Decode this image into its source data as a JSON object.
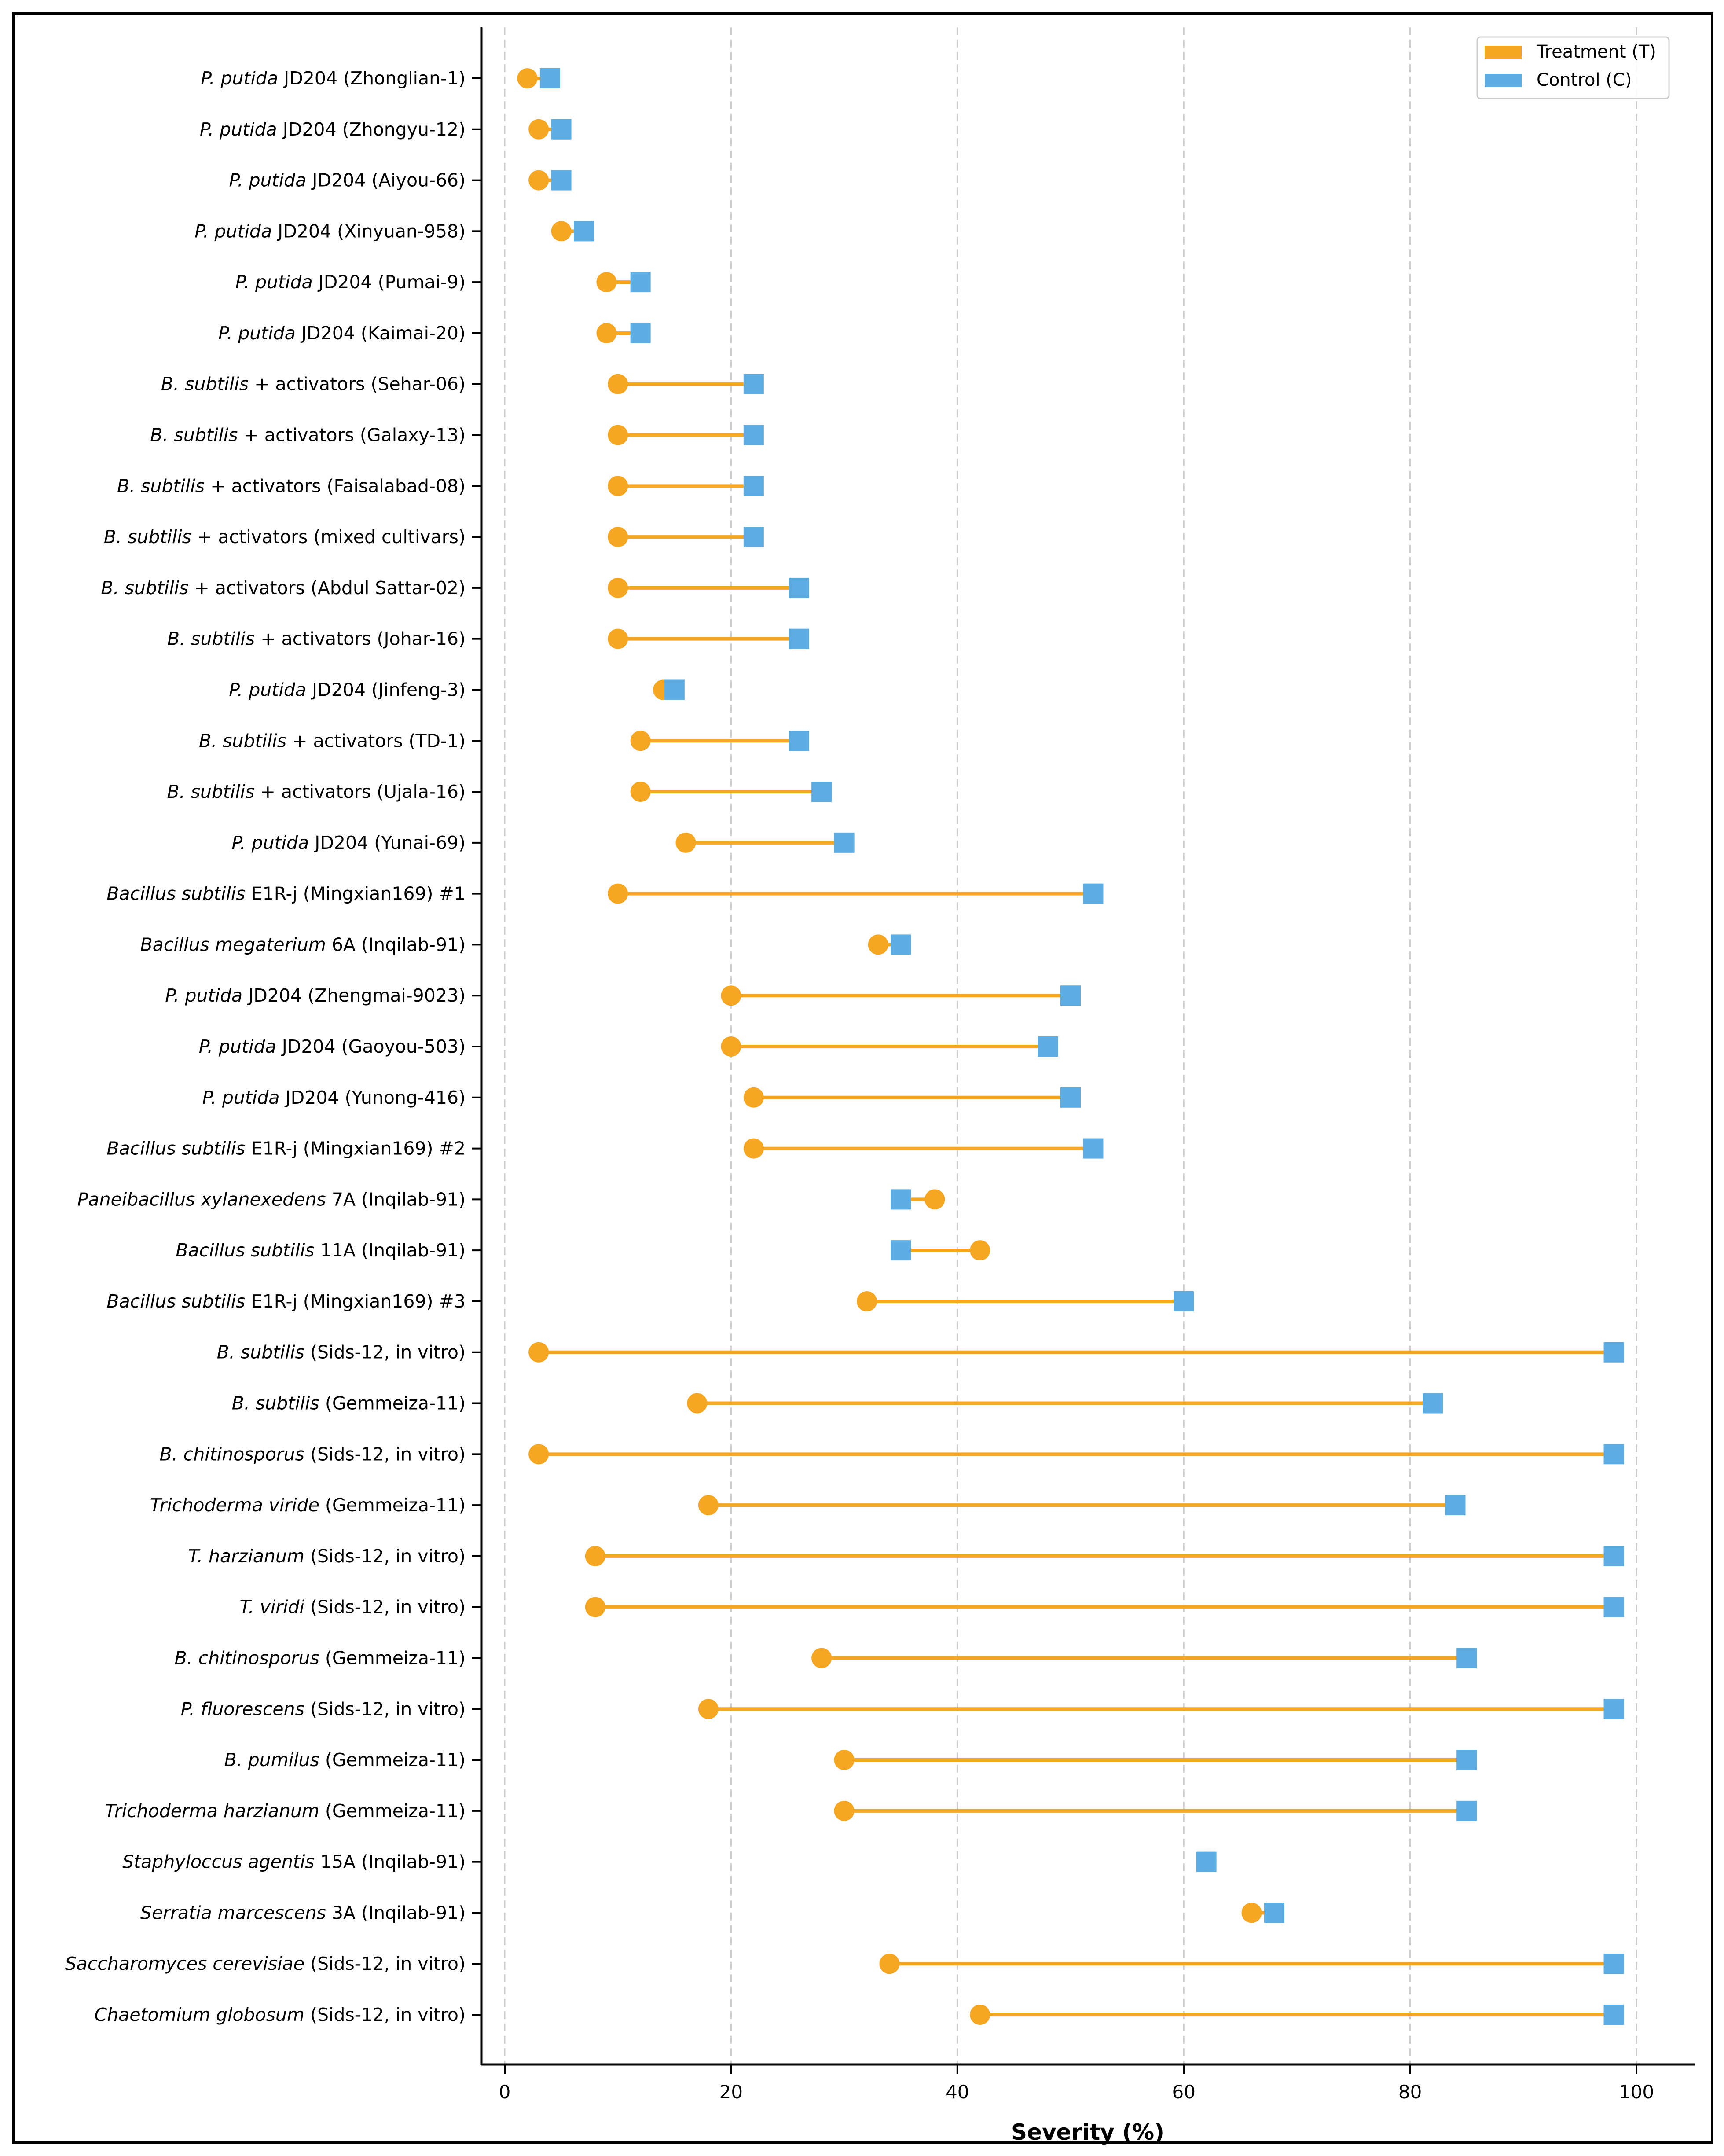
{
  "chart_data": {
    "type": "dumbbell",
    "title": "",
    "xlabel": "Severity (%)",
    "ylabel": "",
    "xlim": [
      -2,
      105
    ],
    "xticks": [
      0,
      20,
      40,
      60,
      80,
      100
    ],
    "grid": "vertical dashed",
    "legend": {
      "placement": "top-right",
      "entries": [
        "Treatment (T)",
        "Control (C)"
      ]
    },
    "colors": {
      "treatment": "#F5A623",
      "control": "#5DADE2"
    },
    "rows": [
      {
        "label": [
          [
            "P. putida",
            1
          ],
          [
            " JD204 (Zhonglian-1)",
            0
          ]
        ],
        "T": 2,
        "C": 4
      },
      {
        "label": [
          [
            "P. putida",
            1
          ],
          [
            " JD204 (Zhongyu-12)",
            0
          ]
        ],
        "T": 3,
        "C": 5
      },
      {
        "label": [
          [
            "P. putida",
            1
          ],
          [
            " JD204 (Aiyou-66)",
            0
          ]
        ],
        "T": 3,
        "C": 5
      },
      {
        "label": [
          [
            "P. putida",
            1
          ],
          [
            " JD204 (Xinyuan-958)",
            0
          ]
        ],
        "T": 5,
        "C": 7
      },
      {
        "label": [
          [
            "P. putida",
            1
          ],
          [
            " JD204 (Pumai-9)",
            0
          ]
        ],
        "T": 9,
        "C": 12
      },
      {
        "label": [
          [
            "P. putida",
            1
          ],
          [
            " JD204 (Kaimai-20)",
            0
          ]
        ],
        "T": 9,
        "C": 12
      },
      {
        "label": [
          [
            "B. subtilis",
            1
          ],
          [
            " + activators (Sehar-06)",
            0
          ]
        ],
        "T": 10,
        "C": 22
      },
      {
        "label": [
          [
            "B. subtilis",
            1
          ],
          [
            " + activators (Galaxy-13)",
            0
          ]
        ],
        "T": 10,
        "C": 22
      },
      {
        "label": [
          [
            "B. subtilis",
            1
          ],
          [
            " + activators (Faisalabad-08)",
            0
          ]
        ],
        "T": 10,
        "C": 22
      },
      {
        "label": [
          [
            "B. subtilis",
            1
          ],
          [
            " + activators (mixed cultivars)",
            0
          ]
        ],
        "T": 10,
        "C": 22
      },
      {
        "label": [
          [
            "B. subtilis",
            1
          ],
          [
            " + activators (Abdul Sattar-02)",
            0
          ]
        ],
        "T": 10,
        "C": 26
      },
      {
        "label": [
          [
            "B. subtilis",
            1
          ],
          [
            " + activators (Johar-16)",
            0
          ]
        ],
        "T": 10,
        "C": 26
      },
      {
        "label": [
          [
            "P. putida",
            1
          ],
          [
            " JD204 (Jinfeng-3)",
            0
          ]
        ],
        "T": 14,
        "C": 15
      },
      {
        "label": [
          [
            "B. subtilis",
            1
          ],
          [
            " + activators (TD-1)",
            0
          ]
        ],
        "T": 12,
        "C": 26
      },
      {
        "label": [
          [
            "B. subtilis",
            1
          ],
          [
            " + activators (Ujala-16)",
            0
          ]
        ],
        "T": 12,
        "C": 28
      },
      {
        "label": [
          [
            "P. putida",
            1
          ],
          [
            " JD204 (Yunai-69)",
            0
          ]
        ],
        "T": 16,
        "C": 30
      },
      {
        "label": [
          [
            "Bacillus subtilis",
            1
          ],
          [
            " E1R-j (Mingxian169) #1",
            0
          ]
        ],
        "T": 10,
        "C": 52
      },
      {
        "label": [
          [
            "Bacillus megaterium",
            1
          ],
          [
            " 6A (Inqilab-91)",
            0
          ]
        ],
        "T": 33,
        "C": 35
      },
      {
        "label": [
          [
            "P. putida",
            1
          ],
          [
            " JD204 (Zhengmai-9023)",
            0
          ]
        ],
        "T": 20,
        "C": 50
      },
      {
        "label": [
          [
            "P. putida",
            1
          ],
          [
            " JD204 (Gaoyou-503)",
            0
          ]
        ],
        "T": 20,
        "C": 48
      },
      {
        "label": [
          [
            "P. putida",
            1
          ],
          [
            " JD204 (Yunong-416)",
            0
          ]
        ],
        "T": 22,
        "C": 50
      },
      {
        "label": [
          [
            "Bacillus subtilis",
            1
          ],
          [
            " E1R-j (Mingxian169) #2",
            0
          ]
        ],
        "T": 22,
        "C": 52
      },
      {
        "label": [
          [
            "Paneibacillus xylanexedens",
            1
          ],
          [
            " 7A (Inqilab-91)",
            0
          ]
        ],
        "T": 38,
        "C": 35
      },
      {
        "label": [
          [
            "Bacillus subtilis",
            1
          ],
          [
            " 11A (Inqilab-91)",
            0
          ]
        ],
        "T": 42,
        "C": 35
      },
      {
        "label": [
          [
            "Bacillus subtilis",
            1
          ],
          [
            " E1R-j (Mingxian169) #3",
            0
          ]
        ],
        "T": 32,
        "C": 60
      },
      {
        "label": [
          [
            "B. subtilis",
            1
          ],
          [
            " (Sids-12, in vitro)",
            0
          ]
        ],
        "T": 3,
        "C": 98
      },
      {
        "label": [
          [
            "B. subtilis",
            1
          ],
          [
            " (Gemmeiza-11)",
            0
          ]
        ],
        "T": 17,
        "C": 82
      },
      {
        "label": [
          [
            "B. chitinosporus",
            1
          ],
          [
            " (Sids-12, in vitro)",
            0
          ]
        ],
        "T": 3,
        "C": 98
      },
      {
        "label": [
          [
            "Trichoderma viride",
            1
          ],
          [
            " (Gemmeiza-11)",
            0
          ]
        ],
        "T": 18,
        "C": 84
      },
      {
        "label": [
          [
            "T. harzianum",
            1
          ],
          [
            " (Sids-12, in vitro)",
            0
          ]
        ],
        "T": 8,
        "C": 98
      },
      {
        "label": [
          [
            "T. viridi",
            1
          ],
          [
            " (Sids-12, in vitro)",
            0
          ]
        ],
        "T": 8,
        "C": 98
      },
      {
        "label": [
          [
            "B. chitinosporus",
            1
          ],
          [
            " (Gemmeiza-11)",
            0
          ]
        ],
        "T": 28,
        "C": 85
      },
      {
        "label": [
          [
            "P. fluorescens",
            1
          ],
          [
            " (Sids-12, in vitro)",
            0
          ]
        ],
        "T": 18,
        "C": 98
      },
      {
        "label": [
          [
            "B. pumilus",
            1
          ],
          [
            " (Gemmeiza-11)",
            0
          ]
        ],
        "T": 30,
        "C": 85
      },
      {
        "label": [
          [
            "Trichoderma harzianum",
            1
          ],
          [
            " (Gemmeiza-11)",
            0
          ]
        ],
        "T": 30,
        "C": 85
      },
      {
        "label": [
          [
            "Staphyloccus agentis",
            1
          ],
          [
            " 15A (Inqilab-91)",
            0
          ]
        ],
        "T": 62,
        "C": 62
      },
      {
        "label": [
          [
            "Serratia marcescens",
            1
          ],
          [
            " 3A (Inqilab-91)",
            0
          ]
        ],
        "T": 66,
        "C": 68
      },
      {
        "label": [
          [
            "Saccharomyces cerevisiae",
            1
          ],
          [
            " (Sids-12, in vitro)",
            0
          ]
        ],
        "T": 34,
        "C": 98
      },
      {
        "label": [
          [
            "Chaetomium globosum",
            1
          ],
          [
            " (Sids-12, in vitro)",
            0
          ]
        ],
        "T": 42,
        "C": 98
      }
    ]
  }
}
